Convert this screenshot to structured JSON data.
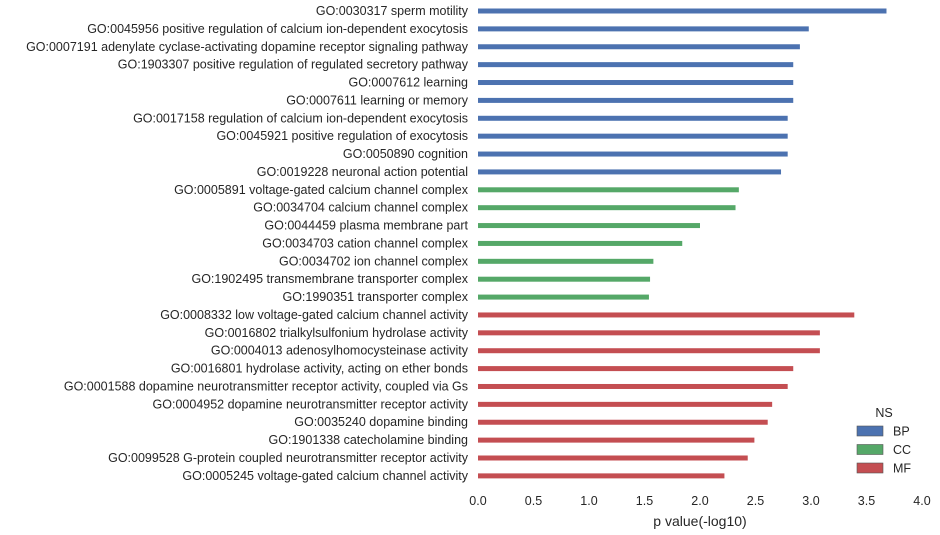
{
  "chart_data": {
    "type": "bar",
    "orientation": "horizontal",
    "xlabel": "p value(-log10)",
    "ylabel": "",
    "xlim": [
      0,
      4
    ],
    "xticks": [
      "0.0",
      "0.5",
      "1.0",
      "1.5",
      "2.0",
      "2.5",
      "3.0",
      "3.5",
      "4.0"
    ],
    "grid": false,
    "legend": {
      "title": "NS",
      "placement": "bottom-right",
      "entries": [
        {
          "name": "BP",
          "color": "#4c72b0"
        },
        {
          "name": "CC",
          "color": "#55a868"
        },
        {
          "name": "MF",
          "color": "#c44e52"
        }
      ]
    },
    "categories": [
      {
        "label": "GO:0030317 sperm motility",
        "value": 3.68,
        "ns": "BP"
      },
      {
        "label": "GO:0045956 positive regulation of calcium ion-dependent exocytosis",
        "value": 2.98,
        "ns": "BP"
      },
      {
        "label": "GO:0007191 adenylate cyclase-activating dopamine receptor signaling pathway",
        "value": 2.9,
        "ns": "BP"
      },
      {
        "label": "GO:1903307 positive regulation of regulated secretory pathway",
        "value": 2.84,
        "ns": "BP"
      },
      {
        "label": "GO:0007612 learning",
        "value": 2.84,
        "ns": "BP"
      },
      {
        "label": "GO:0007611 learning or memory",
        "value": 2.84,
        "ns": "BP"
      },
      {
        "label": "GO:0017158 regulation of calcium ion-dependent exocytosis",
        "value": 2.79,
        "ns": "BP"
      },
      {
        "label": "GO:0045921 positive regulation of exocytosis",
        "value": 2.79,
        "ns": "BP"
      },
      {
        "label": "GO:0050890 cognition",
        "value": 2.79,
        "ns": "BP"
      },
      {
        "label": "GO:0019228 neuronal action potential",
        "value": 2.73,
        "ns": "BP"
      },
      {
        "label": "GO:0005891 voltage-gated calcium channel complex",
        "value": 2.35,
        "ns": "CC"
      },
      {
        "label": "GO:0034704 calcium channel complex",
        "value": 2.32,
        "ns": "CC"
      },
      {
        "label": "GO:0044459 plasma membrane part",
        "value": 2.0,
        "ns": "CC"
      },
      {
        "label": "GO:0034703 cation channel complex",
        "value": 1.84,
        "ns": "CC"
      },
      {
        "label": "GO:0034702 ion channel complex",
        "value": 1.58,
        "ns": "CC"
      },
      {
        "label": "GO:1902495 transmembrane transporter complex",
        "value": 1.55,
        "ns": "CC"
      },
      {
        "label": "GO:1990351 transporter complex",
        "value": 1.54,
        "ns": "CC"
      },
      {
        "label": "GO:0008332 low voltage-gated calcium channel activity",
        "value": 3.39,
        "ns": "MF"
      },
      {
        "label": "GO:0016802 trialkylsulfonium hydrolase activity",
        "value": 3.08,
        "ns": "MF"
      },
      {
        "label": "GO:0004013 adenosylhomocysteinase activity",
        "value": 3.08,
        "ns": "MF"
      },
      {
        "label": "GO:0016801 hydrolase activity, acting on ether bonds",
        "value": 2.84,
        "ns": "MF"
      },
      {
        "label": "GO:0001588 dopamine neurotransmitter receptor activity, coupled via Gs",
        "value": 2.79,
        "ns": "MF"
      },
      {
        "label": "GO:0004952 dopamine neurotransmitter receptor activity",
        "value": 2.65,
        "ns": "MF"
      },
      {
        "label": "GO:0035240 dopamine binding",
        "value": 2.61,
        "ns": "MF"
      },
      {
        "label": "GO:1901338 catecholamine binding",
        "value": 2.49,
        "ns": "MF"
      },
      {
        "label": "GO:0099528 G-protein coupled neurotransmitter receptor activity",
        "value": 2.43,
        "ns": "MF"
      },
      {
        "label": "GO:0005245 voltage-gated calcium channel activity",
        "value": 2.22,
        "ns": "MF"
      }
    ]
  }
}
